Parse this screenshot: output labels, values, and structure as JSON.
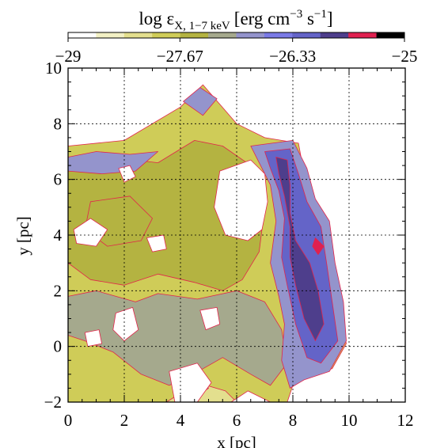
{
  "chart_data": {
    "type": "heatmap",
    "title_main": "log ε",
    "title_sub": "X, 1−7 keV",
    "title_unit": "[erg cm",
    "title_exp1": "−3",
    "title_mid": " s",
    "title_exp2": "−1",
    "title_close": "]",
    "xlabel": "x [pc]",
    "ylabel": "y [pc]",
    "xlim": [
      0,
      12
    ],
    "ylim": [
      -2,
      10
    ],
    "grid": true,
    "xticks": [
      0,
      2,
      4,
      6,
      8,
      10,
      12
    ],
    "yticks": [
      -2,
      0,
      2,
      4,
      6,
      8,
      10
    ],
    "xtick_labels": [
      "0",
      "2",
      "4",
      "6",
      "8",
      "10",
      "12"
    ],
    "ytick_labels": [
      "−2",
      "0",
      "2",
      "4",
      "6",
      "8",
      "10"
    ],
    "colorbar": {
      "range": [
        -29,
        -25
      ],
      "tick_values": [
        -29,
        -27.67,
        -26.33,
        -25
      ],
      "tick_labels": [
        "−29",
        "−27.67",
        "−26.33",
        "−25"
      ],
      "levels": 12,
      "colors": [
        "#ffffff",
        "#f2f0c4",
        "#e3df8e",
        "#cfcc58",
        "#b4b341",
        "#a5a98d",
        "#9494cc",
        "#7a7ae6",
        "#6464c8",
        "#4e3e8c",
        "#e02050",
        "#000000"
      ],
      "placement": "top"
    },
    "contour_line_color": "#e2244a",
    "regions": [
      {
        "level": 3,
        "poly": [
          [
            0,
            7.2
          ],
          [
            2,
            7.4
          ],
          [
            4,
            8.6
          ],
          [
            4.8,
            9.4
          ],
          [
            6,
            8.0
          ],
          [
            7,
            7.5
          ],
          [
            8.2,
            7.3
          ],
          [
            8.4,
            6.2
          ],
          [
            8.6,
            5.2
          ],
          [
            9.1,
            4.5
          ],
          [
            9.3,
            3.2
          ],
          [
            9.6,
            1.5
          ],
          [
            9.9,
            0.1
          ],
          [
            9.4,
            -0.8
          ],
          [
            8.7,
            -1.0
          ],
          [
            8.0,
            -1.4
          ],
          [
            7.8,
            -2
          ],
          [
            0,
            -2
          ]
        ]
      },
      {
        "level": 2,
        "poly": [
          [
            3.5,
            -2
          ],
          [
            4.6,
            -1.3
          ],
          [
            5.6,
            -1.6
          ],
          [
            6.0,
            -2
          ]
        ]
      },
      {
        "level": 4,
        "poly": [
          [
            0,
            6.6
          ],
          [
            1.5,
            6.8
          ],
          [
            3.2,
            6.6
          ],
          [
            4.5,
            7.4
          ],
          [
            5.5,
            7.2
          ],
          [
            6.5,
            6.5
          ],
          [
            7,
            5.0
          ],
          [
            6.8,
            3.4
          ],
          [
            6.2,
            2.4
          ],
          [
            5.5,
            2.0
          ],
          [
            4.5,
            2.3
          ],
          [
            3.2,
            2.6
          ],
          [
            2.0,
            2.2
          ],
          [
            0.8,
            2.4
          ],
          [
            0,
            3.0
          ]
        ]
      },
      {
        "level": 5,
        "poly": [
          [
            0,
            1.8
          ],
          [
            1.0,
            2.0
          ],
          [
            2.4,
            1.6
          ],
          [
            3.2,
            1.9
          ],
          [
            4.6,
            1.7
          ],
          [
            6.0,
            2.0
          ],
          [
            7.0,
            1.6
          ],
          [
            7.6,
            0.6
          ],
          [
            7.8,
            -0.6
          ],
          [
            7.2,
            -1.4
          ],
          [
            6.5,
            -1.0
          ],
          [
            5.5,
            -0.4
          ],
          [
            4.8,
            -0.8
          ],
          [
            3.6,
            -1.4
          ],
          [
            2.6,
            -1.0
          ],
          [
            1.6,
            -0.2
          ],
          [
            0.6,
            0.2
          ],
          [
            0,
            0.4
          ]
        ]
      },
      {
        "level": 4,
        "poly": [
          [
            0.8,
            5.2
          ],
          [
            2.2,
            5.4
          ],
          [
            3.0,
            4.6
          ],
          [
            2.6,
            3.8
          ],
          [
            1.4,
            3.6
          ],
          [
            0.6,
            4.2
          ]
        ]
      },
      {
        "level": 6,
        "poly": [
          [
            0,
            6.8
          ],
          [
            1.0,
            7.0
          ],
          [
            2.2,
            6.9
          ],
          [
            3.2,
            7.0
          ],
          [
            2.4,
            6.3
          ],
          [
            1.2,
            6.2
          ],
          [
            0,
            6.3
          ]
        ]
      },
      {
        "level": 6,
        "poly": [
          [
            4.1,
            8.8
          ],
          [
            4.7,
            9.3
          ],
          [
            5.3,
            8.9
          ],
          [
            4.8,
            8.3
          ]
        ]
      },
      {
        "level": 6,
        "poly": [
          [
            3.8,
            -1.6
          ],
          [
            4.6,
            -1.0
          ],
          [
            5.0,
            -1.5
          ],
          [
            4.3,
            -2
          ]
        ]
      },
      {
        "level": 6,
        "poly": [
          [
            6.5,
            7.2
          ],
          [
            8.0,
            7.4
          ],
          [
            8.5,
            6.4
          ],
          [
            8.8,
            5.3
          ],
          [
            9.3,
            4.5
          ],
          [
            9.5,
            3.0
          ],
          [
            9.8,
            1.6
          ],
          [
            9.9,
            0.2
          ],
          [
            9.3,
            -0.9
          ],
          [
            8.4,
            -1.2
          ],
          [
            7.9,
            -1.5
          ],
          [
            7.6,
            -0.5
          ],
          [
            7.7,
            0.8
          ],
          [
            7.5,
            1.8
          ],
          [
            7.2,
            3.0
          ],
          [
            7.4,
            4.5
          ],
          [
            7.2,
            5.8
          ],
          [
            6.8,
            6.6
          ]
        ]
      },
      {
        "level": 8,
        "poly": [
          [
            7.0,
            7.0
          ],
          [
            7.9,
            7.1
          ],
          [
            8.2,
            6.2
          ],
          [
            8.5,
            5.2
          ],
          [
            9.0,
            4.3
          ],
          [
            9.2,
            3.0
          ],
          [
            9.4,
            1.6
          ],
          [
            9.6,
            0.2
          ],
          [
            9.0,
            -0.6
          ],
          [
            8.5,
            -0.4
          ],
          [
            8.1,
            0.8
          ],
          [
            7.8,
            2.2
          ],
          [
            7.6,
            3.2
          ],
          [
            7.7,
            4.6
          ],
          [
            7.5,
            5.6
          ],
          [
            7.2,
            6.4
          ]
        ]
      },
      {
        "level": 9,
        "poly": [
          [
            7.4,
            6.8
          ],
          [
            7.8,
            6.7
          ],
          [
            7.9,
            5.8
          ],
          [
            7.9,
            4.8
          ],
          [
            8.1,
            3.8
          ],
          [
            8.6,
            3.0
          ],
          [
            8.9,
            2.0
          ],
          [
            9.1,
            0.8
          ],
          [
            8.8,
            0.2
          ],
          [
            8.4,
            1.0
          ],
          [
            8.1,
            2.2
          ],
          [
            7.9,
            3.2
          ],
          [
            7.9,
            4.3
          ],
          [
            7.7,
            5.4
          ],
          [
            7.5,
            6.2
          ]
        ]
      },
      {
        "level": 10,
        "poly": [
          [
            8.8,
            3.9
          ],
          [
            9.1,
            3.6
          ],
          [
            8.9,
            3.3
          ],
          [
            8.7,
            3.6
          ]
        ]
      },
      {
        "level": 0,
        "poly": [
          [
            5.4,
            6.3
          ],
          [
            6.5,
            6.7
          ],
          [
            7.0,
            6.2
          ],
          [
            7.1,
            5.2
          ],
          [
            6.9,
            4.2
          ],
          [
            6.4,
            3.8
          ],
          [
            5.6,
            4.0
          ],
          [
            5.2,
            5.0
          ]
        ]
      },
      {
        "level": 0,
        "poly": [
          [
            0.2,
            4.2
          ],
          [
            0.8,
            4.6
          ],
          [
            1.4,
            4.2
          ],
          [
            1.0,
            3.6
          ],
          [
            0.3,
            3.7
          ]
        ]
      },
      {
        "level": 0,
        "poly": [
          [
            1.8,
            6.4
          ],
          [
            2.2,
            6.5
          ],
          [
            2.4,
            6.1
          ],
          [
            2.0,
            5.9
          ]
        ]
      },
      {
        "level": 0,
        "poly": [
          [
            2.8,
            3.9
          ],
          [
            3.4,
            4.0
          ],
          [
            3.5,
            3.5
          ],
          [
            3.0,
            3.4
          ]
        ]
      },
      {
        "level": 0,
        "poly": [
          [
            1.7,
            1.2
          ],
          [
            2.3,
            1.4
          ],
          [
            2.5,
            0.6
          ],
          [
            2.0,
            0.2
          ],
          [
            1.6,
            0.6
          ]
        ]
      },
      {
        "level": 0,
        "poly": [
          [
            0.6,
            0.5
          ],
          [
            1.1,
            0.6
          ],
          [
            1.2,
            0.1
          ],
          [
            0.7,
            0.0
          ]
        ]
      },
      {
        "level": 0,
        "poly": [
          [
            3.6,
            -0.9
          ],
          [
            4.6,
            -0.6
          ],
          [
            5.1,
            -1.3
          ],
          [
            4.6,
            -2
          ],
          [
            3.8,
            -2
          ]
        ]
      },
      {
        "level": 0,
        "poly": [
          [
            4.7,
            1.3
          ],
          [
            5.3,
            1.4
          ],
          [
            5.4,
            0.8
          ],
          [
            4.9,
            0.6
          ]
        ]
      },
      {
        "level": 0,
        "poly": [
          [
            5.8,
            -2
          ],
          [
            6.4,
            -1.6
          ],
          [
            7.2,
            -2
          ]
        ]
      }
    ]
  }
}
